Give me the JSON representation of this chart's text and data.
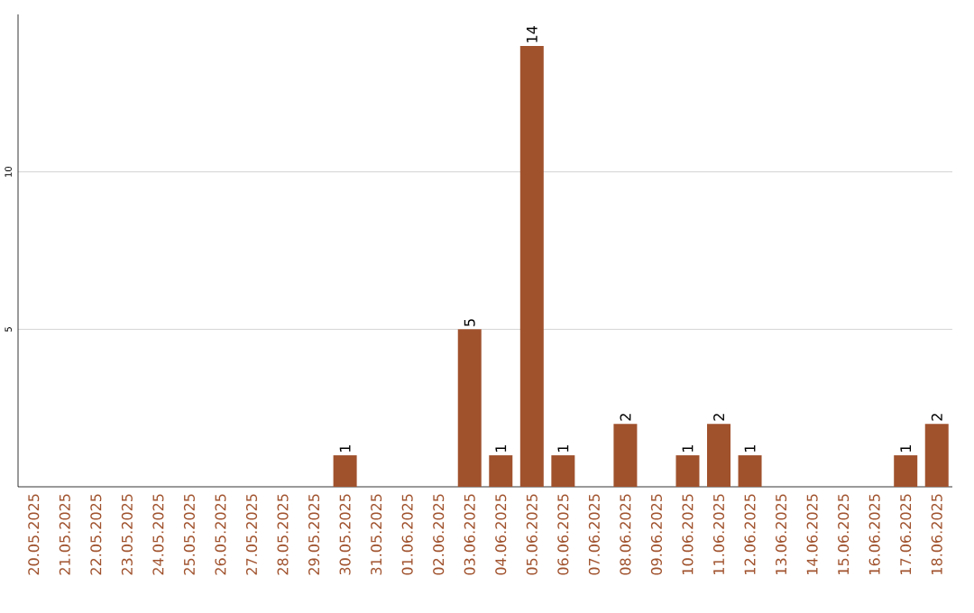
{
  "chart_data": {
    "type": "bar",
    "categories": [
      "20.05.2025",
      "21.05.2025",
      "22.05.2025",
      "23.05.2025",
      "24.05.2025",
      "25.05.2025",
      "26.05.2025",
      "27.05.2025",
      "28.05.2025",
      "29.05.2025",
      "30.05.2025",
      "31.05.2025",
      "01.06.2025",
      "02.06.2025",
      "03.06.2025",
      "04.06.2025",
      "05.06.2025",
      "06.06.2025",
      "07.06.2025",
      "08.06.2025",
      "09.06.2025",
      "10.06.2025",
      "11.06.2025",
      "12.06.2025",
      "13.06.2025",
      "14.06.2025",
      "15.06.2025",
      "16.06.2025",
      "17.06.2025",
      "18.06.2025"
    ],
    "values": [
      0,
      0,
      0,
      0,
      0,
      0,
      0,
      0,
      0,
      0,
      1,
      0,
      0,
      0,
      5,
      1,
      14,
      1,
      0,
      2,
      0,
      1,
      2,
      1,
      0,
      0,
      0,
      0,
      1,
      2
    ],
    "value_labels": [
      null,
      null,
      null,
      null,
      null,
      null,
      null,
      null,
      null,
      null,
      "1",
      null,
      null,
      null,
      "5",
      "1",
      "14",
      "1",
      null,
      "2",
      null,
      "1",
      "2",
      "1",
      null,
      null,
      null,
      null,
      "1",
      "2"
    ],
    "color": "#a0522d",
    "ylim": [
      0,
      15
    ],
    "yticks": [
      5,
      10
    ],
    "grid": "y"
  }
}
